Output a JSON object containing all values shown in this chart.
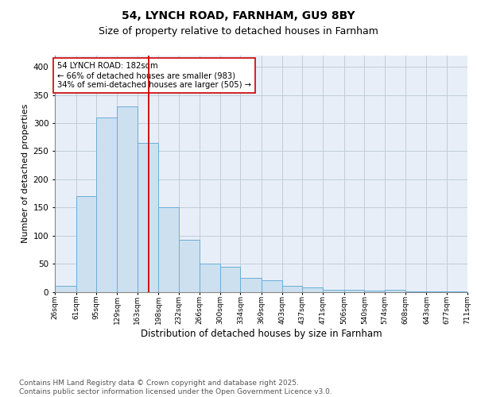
{
  "title1": "54, LYNCH ROAD, FARNHAM, GU9 8BY",
  "title2": "Size of property relative to detached houses in Farnham",
  "xlabel": "Distribution of detached houses by size in Farnham",
  "ylabel": "Number of detached properties",
  "bin_edges": [
    26,
    61,
    95,
    129,
    163,
    198,
    232,
    266,
    300,
    334,
    369,
    403,
    437,
    471,
    506,
    540,
    574,
    608,
    643,
    677,
    711
  ],
  "bin_labels": [
    "26sqm",
    "61sqm",
    "95sqm",
    "129sqm",
    "163sqm",
    "198sqm",
    "232sqm",
    "266sqm",
    "300sqm",
    "334sqm",
    "369sqm",
    "403sqm",
    "437sqm",
    "471sqm",
    "506sqm",
    "540sqm",
    "574sqm",
    "608sqm",
    "643sqm",
    "677sqm",
    "711sqm"
  ],
  "bar_heights": [
    10,
    170,
    310,
    330,
    265,
    150,
    92,
    50,
    45,
    25,
    20,
    10,
    8,
    4,
    3,
    2,
    4,
    1,
    1,
    1
  ],
  "bar_facecolor": "#cce0f0",
  "bar_edgecolor": "#6aaed6",
  "vline_x": 182,
  "vline_color": "#cc0000",
  "annotation_text": "54 LYNCH ROAD: 182sqm\n← 66% of detached houses are smaller (983)\n34% of semi-detached houses are larger (505) →",
  "annotation_box_edgecolor": "#cc0000",
  "ylim": [
    0,
    420
  ],
  "yticks": [
    0,
    50,
    100,
    150,
    200,
    250,
    300,
    350,
    400
  ],
  "grid_color": "#c0ccd8",
  "background_color": "#e8eef8",
  "footer_text": "Contains HM Land Registry data © Crown copyright and database right 2025.\nContains public sector information licensed under the Open Government Licence v3.0.",
  "title_fontsize": 10,
  "subtitle_fontsize": 9,
  "footer_fontsize": 6.5,
  "ylabel_fontsize": 8,
  "xlabel_fontsize": 8.5
}
